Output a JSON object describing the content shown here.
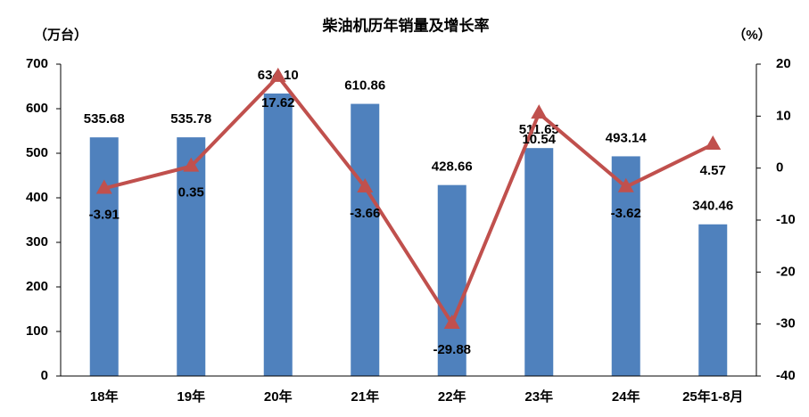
{
  "chart_data": {
    "type": "bar",
    "title": "柴油机历年销量及增长率",
    "y_label": "（万台）",
    "y2_label": "（%）",
    "categories": [
      "18年",
      "19年",
      "20年",
      "21年",
      "22年",
      "23年",
      "24年",
      "25年1-8月"
    ],
    "series": [
      {
        "type": "bar",
        "color": "#4f81bd",
        "values": [
          535.68,
          535.78,
          634.1,
          610.86,
          428.66,
          511.65,
          493.14,
          340.46
        ],
        "value_labels": [
          "535.68",
          "535.78",
          "634.10",
          "610.86",
          "428.66",
          "511.65",
          "493.14",
          "340.46"
        ]
      },
      {
        "type": "line",
        "axis": "y2",
        "color": "#c0504d",
        "values": [
          -3.91,
          0.35,
          17.62,
          -3.66,
          -29.88,
          10.54,
          -3.62,
          4.57
        ]
      }
    ],
    "ylim": [
      0,
      700
    ],
    "yticks": [
      0,
      100,
      200,
      300,
      400,
      500,
      600,
      700
    ],
    "y2lim": [
      -40,
      20
    ],
    "y2ticks": [
      -40,
      -30,
      -20,
      -10,
      0,
      10,
      20
    ],
    "grid": false
  }
}
